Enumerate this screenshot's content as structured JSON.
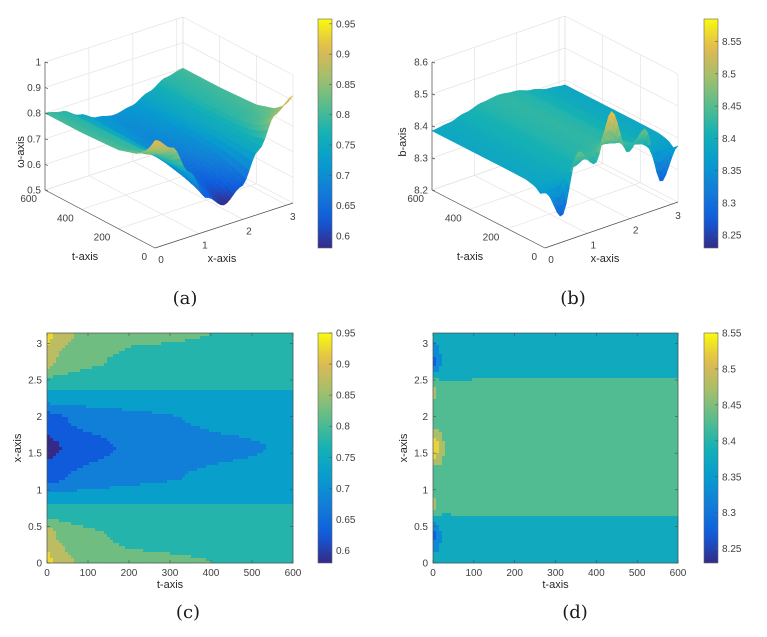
{
  "colormap": "parula",
  "colors": {
    "axis": "#4d4d4d",
    "grid": "#e3e3e3",
    "text": "#404040"
  },
  "captions": {
    "a": "(a)",
    "b": "(b)",
    "c": "(c)",
    "d": "(d)"
  },
  "chart_data": [
    {
      "id": "a",
      "type": "surface3d",
      "xlabel": "x-axis",
      "ylabel": "t-axis",
      "zlabel": "ω-axis",
      "xlim": [
        0,
        3.1416
      ],
      "ylim": [
        0,
        600
      ],
      "zlim": [
        0.5,
        1
      ],
      "xticks": [
        0,
        1,
        2,
        3
      ],
      "yticks": [
        0,
        200,
        400,
        600
      ],
      "zticks": [
        0.5,
        0.6,
        0.7,
        0.8,
        0.9,
        1
      ],
      "zticklabels": [
        "0.5",
        "0.6",
        "0.7",
        "0.8",
        "0.9",
        "1"
      ],
      "grid": true,
      "colorbar": {
        "range": [
          0.58,
          0.958
        ],
        "ticks": [
          0.6,
          0.65,
          0.7,
          0.75,
          0.8,
          0.85,
          0.9,
          0.95
        ],
        "ticklabels": [
          "0.6",
          "0.65",
          "0.7",
          "0.75",
          "0.8",
          "0.85",
          "0.9",
          "0.95"
        ]
      },
      "x": [
        0,
        0.3927,
        0.7854,
        1.1781,
        1.5708,
        1.9635,
        2.3562,
        2.7489,
        3.1416
      ],
      "t": [
        0,
        25,
        50,
        100,
        200,
        400,
        600
      ],
      "z": [
        [
          0.92,
          0.87,
          0.75,
          0.63,
          0.58,
          0.63,
          0.75,
          0.87,
          0.92
        ],
        [
          0.886,
          0.846,
          0.75,
          0.64,
          0.595,
          0.64,
          0.75,
          0.846,
          0.886
        ],
        [
          0.861,
          0.828,
          0.75,
          0.65,
          0.608,
          0.65,
          0.75,
          0.828,
          0.861
        ],
        [
          0.831,
          0.807,
          0.75,
          0.665,
          0.63,
          0.665,
          0.75,
          0.807,
          0.831
        ],
        [
          0.808,
          0.791,
          0.75,
          0.686,
          0.66,
          0.686,
          0.75,
          0.791,
          0.808
        ],
        [
          0.8,
          0.786,
          0.75,
          0.707,
          0.689,
          0.707,
          0.75,
          0.786,
          0.8
        ],
        [
          0.8,
          0.785,
          0.75,
          0.718,
          0.705,
          0.718,
          0.75,
          0.785,
          0.8
        ]
      ]
    },
    {
      "id": "b",
      "type": "surface3d",
      "xlabel": "x-axis",
      "ylabel": "t-axis",
      "zlabel": "b-axis",
      "xlim": [
        0,
        3.1416
      ],
      "ylim": [
        0,
        600
      ],
      "zlim": [
        8.2,
        8.6
      ],
      "xticks": [
        0,
        1,
        2,
        3
      ],
      "yticks": [
        0,
        200,
        400,
        600
      ],
      "zticks": [
        8.2,
        8.3,
        8.4,
        8.5,
        8.6
      ],
      "zticklabels": [
        "8.2",
        "8.3",
        "8.4",
        "8.5",
        "8.6"
      ],
      "grid": true,
      "colorbar": {
        "range": [
          8.23,
          8.585
        ],
        "ticks": [
          8.25,
          8.3,
          8.35,
          8.4,
          8.45,
          8.5,
          8.55
        ],
        "ticklabels": [
          "8.25",
          "8.3",
          "8.35",
          "8.4",
          "8.45",
          "8.5",
          "8.55"
        ]
      },
      "x": [
        0,
        0.3927,
        0.7854,
        1.1781,
        1.5708,
        1.9635,
        2.3562,
        2.7489,
        3.1416
      ],
      "t": [
        0,
        25,
        50,
        100,
        200,
        400,
        600
      ],
      "z": [
        [
          8.375,
          8.281,
          8.465,
          8.409,
          8.555,
          8.409,
          8.465,
          8.281,
          8.375
        ],
        [
          8.362,
          8.37,
          8.408,
          8.435,
          8.453,
          8.435,
          8.408,
          8.37,
          8.362
        ],
        [
          8.376,
          8.384,
          8.405,
          8.426,
          8.435,
          8.426,
          8.405,
          8.384,
          8.376
        ],
        [
          8.384,
          8.39,
          8.405,
          8.42,
          8.426,
          8.42,
          8.405,
          8.39,
          8.384
        ],
        [
          8.385,
          8.391,
          8.405,
          8.419,
          8.425,
          8.419,
          8.405,
          8.391,
          8.385
        ],
        [
          8.385,
          8.391,
          8.405,
          8.419,
          8.425,
          8.419,
          8.405,
          8.391,
          8.385
        ],
        [
          8.385,
          8.391,
          8.405,
          8.419,
          8.425,
          8.419,
          8.405,
          8.391,
          8.385
        ]
      ]
    },
    {
      "id": "c",
      "type": "contourf",
      "xlabel": "t-axis",
      "ylabel": "x-axis",
      "xlim": [
        0,
        600
      ],
      "ylim": [
        0,
        3.1416
      ],
      "xticks": [
        0,
        100,
        200,
        300,
        400,
        500,
        600
      ],
      "yticks": [
        0,
        0.5,
        1,
        1.5,
        2,
        2.5,
        3
      ],
      "yticklabels": [
        "0",
        "0.5",
        "1",
        "1.5",
        "2",
        "2.5",
        "3"
      ],
      "levels_step": 0.05,
      "colorbar": {
        "range": [
          0.58,
          0.95
        ],
        "ticks": [
          0.6,
          0.65,
          0.7,
          0.75,
          0.8,
          0.85,
          0.9,
          0.95
        ],
        "ticklabels": [
          "0.6",
          "0.65",
          "0.7",
          "0.75",
          "0.8",
          "0.85",
          "0.9",
          "0.95"
        ]
      },
      "source": "a"
    },
    {
      "id": "d",
      "type": "contourf",
      "xlabel": "t-axis",
      "ylabel": "x-axis",
      "xlim": [
        0,
        600
      ],
      "ylim": [
        0,
        3.1416
      ],
      "xticks": [
        0,
        100,
        200,
        300,
        400,
        500,
        600
      ],
      "yticks": [
        0,
        0.5,
        1,
        1.5,
        2,
        2.5,
        3
      ],
      "yticklabels": [
        "0",
        "0.5",
        "1",
        "1.5",
        "2",
        "2.5",
        "3"
      ],
      "levels_step": 0.05,
      "colorbar": {
        "range": [
          8.23,
          8.55
        ],
        "ticks": [
          8.25,
          8.3,
          8.35,
          8.4,
          8.45,
          8.5,
          8.55
        ],
        "ticklabels": [
          "8.25",
          "8.3",
          "8.35",
          "8.4",
          "8.45",
          "8.5",
          "8.55"
        ]
      },
      "source": "b"
    }
  ]
}
